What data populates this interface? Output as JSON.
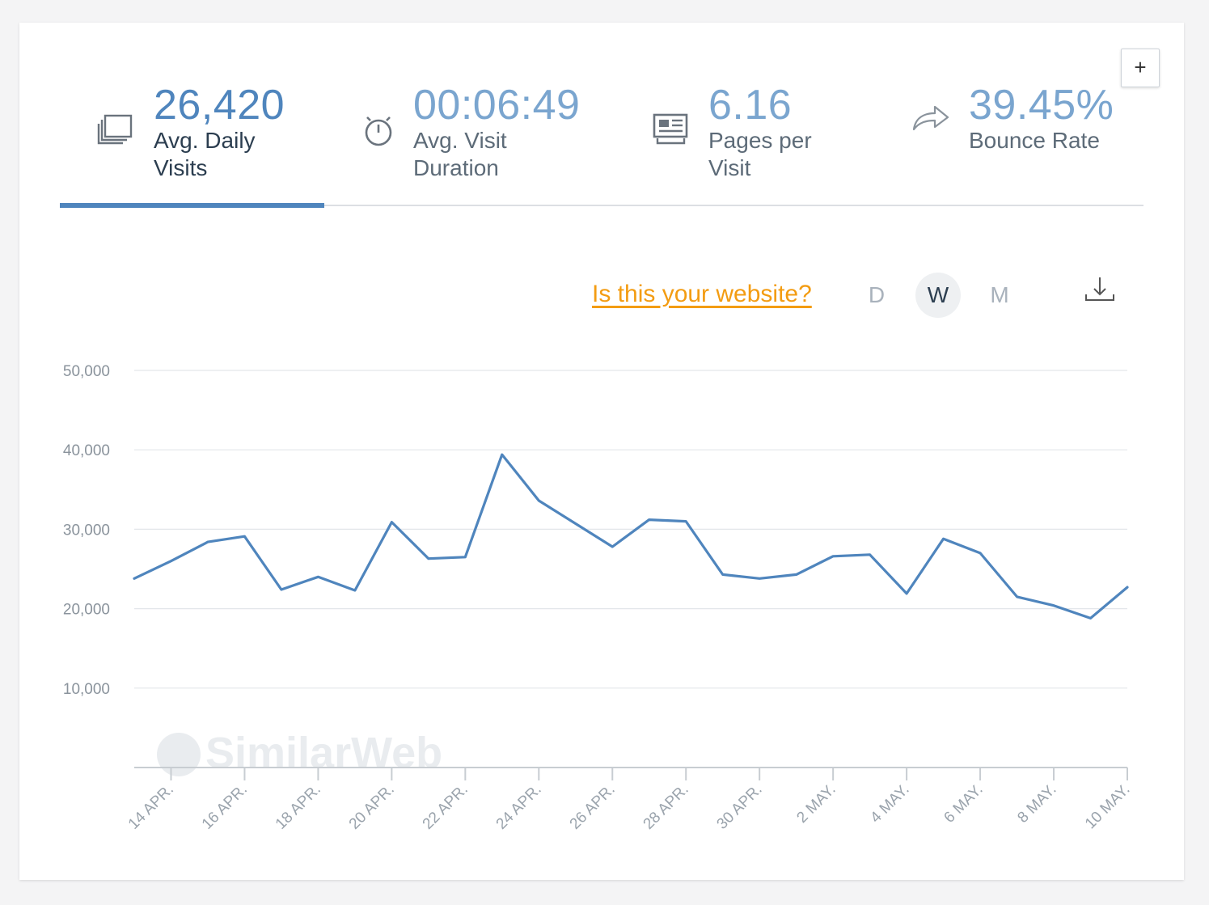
{
  "toolbar": {
    "expand_label": "+"
  },
  "metrics": [
    {
      "value": "26,420",
      "label": "Avg. Daily Visits",
      "icon": "visits-icon",
      "active": true
    },
    {
      "value": "00:06:49",
      "label": "Avg. Visit Duration",
      "icon": "stopwatch-icon",
      "active": false
    },
    {
      "value": "6.16",
      "label": "Pages per Visit",
      "icon": "pages-icon",
      "active": false
    },
    {
      "value": "39.45%",
      "label": "Bounce Rate",
      "icon": "bounce-arrow-icon",
      "active": false
    }
  ],
  "controls": {
    "your_website_link": "Is this your website?",
    "granularity": [
      {
        "label": "D",
        "active": false
      },
      {
        "label": "W",
        "active": true
      },
      {
        "label": "M",
        "active": false
      }
    ],
    "download_icon": "download-icon"
  },
  "watermark": "SimilarWeb",
  "colors": {
    "accent": "#4f85bd",
    "metric_value": "#7aa5cf",
    "link": "#f39c12",
    "series": "#4f85bd"
  },
  "chart_data": {
    "type": "line",
    "title": "",
    "xlabel": "",
    "ylabel": "",
    "ylim": [
      0,
      50000
    ],
    "yticks": [
      10000,
      20000,
      30000,
      40000,
      50000
    ],
    "ytick_labels": [
      "10,000",
      "20,000",
      "30,000",
      "40,000",
      "50,000"
    ],
    "xtick_labels": [
      "14 APR.",
      "16 APR.",
      "18 APR.",
      "20 APR.",
      "22 APR.",
      "24 APR.",
      "26 APR.",
      "28 APR.",
      "30 APR.",
      "2 MAY.",
      "4 MAY.",
      "6 MAY.",
      "8 MAY.",
      "10 MAY."
    ],
    "grid": true,
    "x": [
      "13 APR.",
      "14 APR.",
      "15 APR.",
      "16 APR.",
      "17 APR.",
      "18 APR.",
      "19 APR.",
      "20 APR.",
      "21 APR.",
      "22 APR.",
      "23 APR.",
      "24 APR.",
      "25 APR.",
      "26 APR.",
      "27 APR.",
      "28 APR.",
      "29 APR.",
      "30 APR.",
      "1 MAY.",
      "2 MAY.",
      "3 MAY.",
      "4 MAY.",
      "5 MAY.",
      "6 MAY.",
      "7 MAY.",
      "8 MAY.",
      "9 MAY.",
      "10 MAY."
    ],
    "series": [
      {
        "values": [
          23800,
          26000,
          28400,
          29100,
          22400,
          24000,
          22300,
          30900,
          26300,
          26500,
          39400,
          33600,
          30700,
          27800,
          31200,
          31000,
          24300,
          23800,
          24300,
          26600,
          26800,
          21900,
          28800,
          27000,
          21500,
          20400,
          18800,
          22700
        ]
      }
    ]
  }
}
